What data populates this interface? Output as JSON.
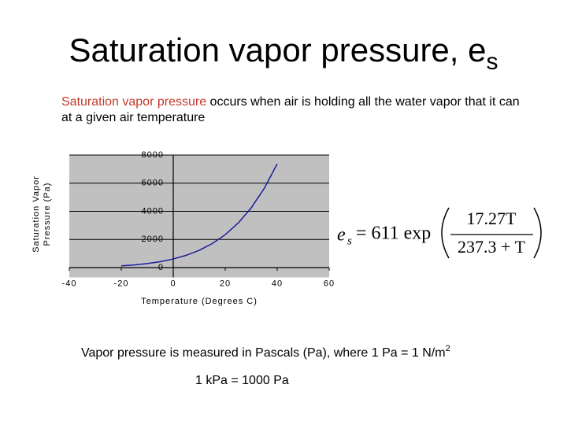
{
  "title": {
    "text": "Saturation vapor pressure, e",
    "subscript": "s"
  },
  "intro": {
    "highlight": "Saturation vapor pressure",
    "rest": " occurs when air is holding all the water vapor that it can at a given air temperature"
  },
  "equation": {
    "lhs": "e",
    "lhs_subscript": "s",
    "prefix": "= 611 exp",
    "numerator": "17.27T",
    "denominator": "237.3 + T"
  },
  "notes": {
    "line1": "Vapor pressure is measured in Pascals (Pa), where 1 Pa = 1 N/m",
    "line1_superscript": "2",
    "line2": "1 kPa = 1000 Pa"
  },
  "chart_data": {
    "type": "line",
    "x_label": "Temperature (Degrees C)",
    "y_label": "Saturation Vapor Pressure (Pa)",
    "x": [
      -20,
      -15,
      -10,
      -5,
      0,
      5,
      10,
      15,
      20,
      25,
      30,
      35,
      40
    ],
    "values": [
      125,
      190,
      286,
      421,
      611,
      872,
      1228,
      1706,
      2339,
      3169,
      4245,
      5625,
      7378
    ],
    "color": "#1c1c9c",
    "plot_background": "#c0c0c0",
    "xlim": [
      -40,
      60
    ],
    "xticks": [
      -40,
      -20,
      0,
      20,
      40,
      60
    ],
    "ylim": [
      -700,
      8000
    ],
    "yticks": [
      0,
      2000,
      4000,
      6000,
      8000
    ],
    "grid": true
  }
}
